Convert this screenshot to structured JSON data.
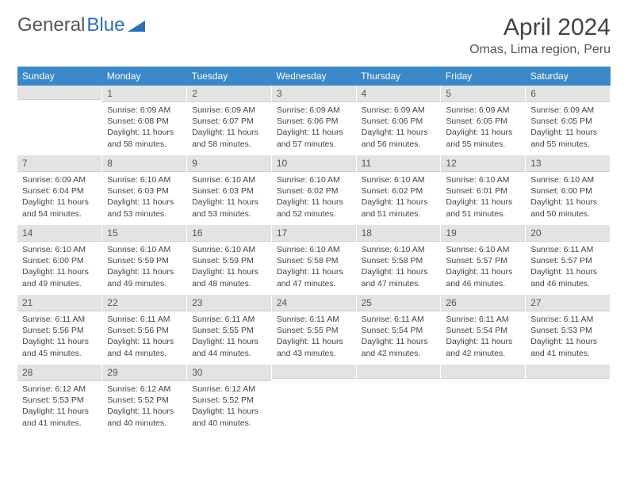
{
  "logo": {
    "text1": "General",
    "text2": "Blue"
  },
  "title": "April 2024",
  "location": "Omas, Lima region, Peru",
  "colors": {
    "header_bg": "#3b88c9",
    "daynum_bg": "#e3e3e3",
    "text": "#444444",
    "logo_gray": "#555555",
    "logo_blue": "#2a6fb5"
  },
  "day_labels": [
    "Sunday",
    "Monday",
    "Tuesday",
    "Wednesday",
    "Thursday",
    "Friday",
    "Saturday"
  ],
  "weeks": [
    [
      null,
      {
        "n": "1",
        "sr": "Sunrise: 6:09 AM",
        "ss": "Sunset: 6:08 PM",
        "dl": "Daylight: 11 hours and 58 minutes."
      },
      {
        "n": "2",
        "sr": "Sunrise: 6:09 AM",
        "ss": "Sunset: 6:07 PM",
        "dl": "Daylight: 11 hours and 58 minutes."
      },
      {
        "n": "3",
        "sr": "Sunrise: 6:09 AM",
        "ss": "Sunset: 6:06 PM",
        "dl": "Daylight: 11 hours and 57 minutes."
      },
      {
        "n": "4",
        "sr": "Sunrise: 6:09 AM",
        "ss": "Sunset: 6:06 PM",
        "dl": "Daylight: 11 hours and 56 minutes."
      },
      {
        "n": "5",
        "sr": "Sunrise: 6:09 AM",
        "ss": "Sunset: 6:05 PM",
        "dl": "Daylight: 11 hours and 55 minutes."
      },
      {
        "n": "6",
        "sr": "Sunrise: 6:09 AM",
        "ss": "Sunset: 6:05 PM",
        "dl": "Daylight: 11 hours and 55 minutes."
      }
    ],
    [
      {
        "n": "7",
        "sr": "Sunrise: 6:09 AM",
        "ss": "Sunset: 6:04 PM",
        "dl": "Daylight: 11 hours and 54 minutes."
      },
      {
        "n": "8",
        "sr": "Sunrise: 6:10 AM",
        "ss": "Sunset: 6:03 PM",
        "dl": "Daylight: 11 hours and 53 minutes."
      },
      {
        "n": "9",
        "sr": "Sunrise: 6:10 AM",
        "ss": "Sunset: 6:03 PM",
        "dl": "Daylight: 11 hours and 53 minutes."
      },
      {
        "n": "10",
        "sr": "Sunrise: 6:10 AM",
        "ss": "Sunset: 6:02 PM",
        "dl": "Daylight: 11 hours and 52 minutes."
      },
      {
        "n": "11",
        "sr": "Sunrise: 6:10 AM",
        "ss": "Sunset: 6:02 PM",
        "dl": "Daylight: 11 hours and 51 minutes."
      },
      {
        "n": "12",
        "sr": "Sunrise: 6:10 AM",
        "ss": "Sunset: 6:01 PM",
        "dl": "Daylight: 11 hours and 51 minutes."
      },
      {
        "n": "13",
        "sr": "Sunrise: 6:10 AM",
        "ss": "Sunset: 6:00 PM",
        "dl": "Daylight: 11 hours and 50 minutes."
      }
    ],
    [
      {
        "n": "14",
        "sr": "Sunrise: 6:10 AM",
        "ss": "Sunset: 6:00 PM",
        "dl": "Daylight: 11 hours and 49 minutes."
      },
      {
        "n": "15",
        "sr": "Sunrise: 6:10 AM",
        "ss": "Sunset: 5:59 PM",
        "dl": "Daylight: 11 hours and 49 minutes."
      },
      {
        "n": "16",
        "sr": "Sunrise: 6:10 AM",
        "ss": "Sunset: 5:59 PM",
        "dl": "Daylight: 11 hours and 48 minutes."
      },
      {
        "n": "17",
        "sr": "Sunrise: 6:10 AM",
        "ss": "Sunset: 5:58 PM",
        "dl": "Daylight: 11 hours and 47 minutes."
      },
      {
        "n": "18",
        "sr": "Sunrise: 6:10 AM",
        "ss": "Sunset: 5:58 PM",
        "dl": "Daylight: 11 hours and 47 minutes."
      },
      {
        "n": "19",
        "sr": "Sunrise: 6:10 AM",
        "ss": "Sunset: 5:57 PM",
        "dl": "Daylight: 11 hours and 46 minutes."
      },
      {
        "n": "20",
        "sr": "Sunrise: 6:11 AM",
        "ss": "Sunset: 5:57 PM",
        "dl": "Daylight: 11 hours and 46 minutes."
      }
    ],
    [
      {
        "n": "21",
        "sr": "Sunrise: 6:11 AM",
        "ss": "Sunset: 5:56 PM",
        "dl": "Daylight: 11 hours and 45 minutes."
      },
      {
        "n": "22",
        "sr": "Sunrise: 6:11 AM",
        "ss": "Sunset: 5:56 PM",
        "dl": "Daylight: 11 hours and 44 minutes."
      },
      {
        "n": "23",
        "sr": "Sunrise: 6:11 AM",
        "ss": "Sunset: 5:55 PM",
        "dl": "Daylight: 11 hours and 44 minutes."
      },
      {
        "n": "24",
        "sr": "Sunrise: 6:11 AM",
        "ss": "Sunset: 5:55 PM",
        "dl": "Daylight: 11 hours and 43 minutes."
      },
      {
        "n": "25",
        "sr": "Sunrise: 6:11 AM",
        "ss": "Sunset: 5:54 PM",
        "dl": "Daylight: 11 hours and 42 minutes."
      },
      {
        "n": "26",
        "sr": "Sunrise: 6:11 AM",
        "ss": "Sunset: 5:54 PM",
        "dl": "Daylight: 11 hours and 42 minutes."
      },
      {
        "n": "27",
        "sr": "Sunrise: 6:11 AM",
        "ss": "Sunset: 5:53 PM",
        "dl": "Daylight: 11 hours and 41 minutes."
      }
    ],
    [
      {
        "n": "28",
        "sr": "Sunrise: 6:12 AM",
        "ss": "Sunset: 5:53 PM",
        "dl": "Daylight: 11 hours and 41 minutes."
      },
      {
        "n": "29",
        "sr": "Sunrise: 6:12 AM",
        "ss": "Sunset: 5:52 PM",
        "dl": "Daylight: 11 hours and 40 minutes."
      },
      {
        "n": "30",
        "sr": "Sunrise: 6:12 AM",
        "ss": "Sunset: 5:52 PM",
        "dl": "Daylight: 11 hours and 40 minutes."
      },
      null,
      null,
      null,
      null
    ]
  ]
}
